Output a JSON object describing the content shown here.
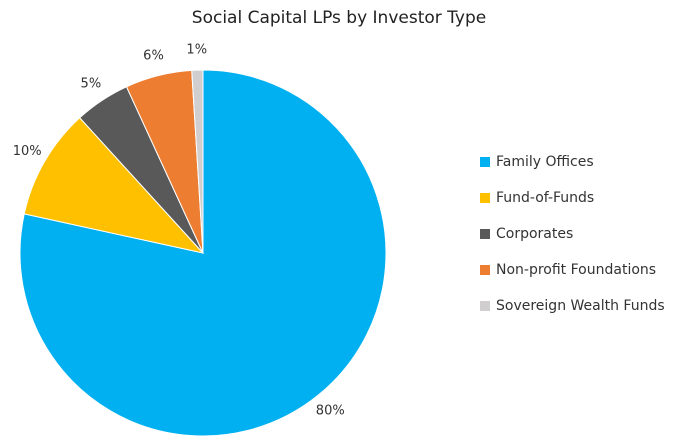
{
  "chart_data": {
    "type": "pie",
    "title": "Social Capital LPs by Investor Type",
    "categories": [
      "Family Offices",
      "Fund-of-Funds",
      "Corporates",
      "Non-profit Foundations",
      "Sovereign Wealth Funds"
    ],
    "values": [
      80,
      10,
      5,
      6,
      1
    ],
    "value_labels": [
      "80%",
      "10%",
      "5%",
      "6%",
      "1%"
    ],
    "colors": [
      "#00b0f0",
      "#ffc000",
      "#595959",
      "#ed7d31",
      "#d0cece"
    ],
    "legend": "right"
  }
}
